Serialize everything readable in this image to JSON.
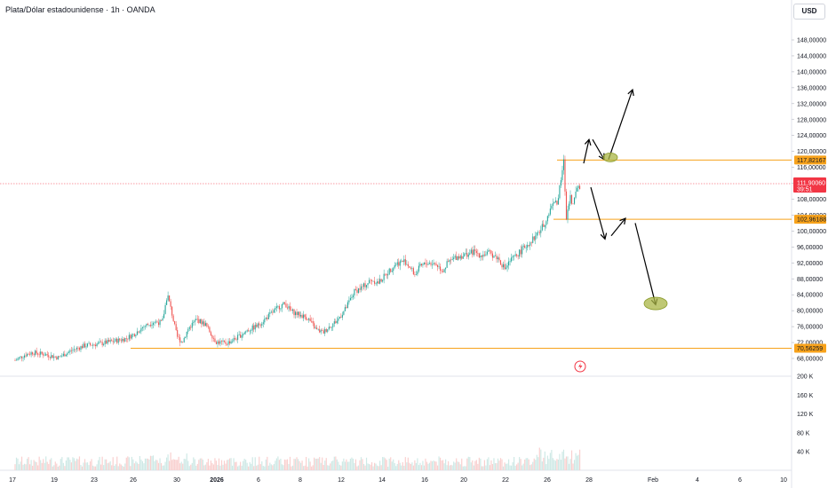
{
  "header": {
    "title": "Plata/Dólar estadounidense · 1h · OANDA",
    "currency_button": "USD"
  },
  "colors": {
    "up": "#26a69a",
    "down": "#ef5350",
    "level_line": "#f7a21b",
    "current_price": "#f23645",
    "ellipse_fill": "#a9b545",
    "arrow": "#000000",
    "vol_up": "#cfe9e6",
    "vol_down": "#f9d0cf"
  },
  "chart_data": {
    "type": "candlestick",
    "price_axis": {
      "ylim": [
        64,
        152
      ],
      "ticks": [
        "148,00000",
        "144,00000",
        "140,00000",
        "136,00000",
        "132,00000",
        "128,00000",
        "124,00000",
        "120,00000",
        "116,00000",
        "112,00000",
        "108,00000",
        "104,00000",
        "100,00000",
        "96,00000",
        "92,00000",
        "88,00000",
        "84,00000",
        "80,00000",
        "76,00000",
        "72,00000",
        "68,00000"
      ],
      "tick_values": [
        148,
        144,
        140,
        136,
        132,
        128,
        124,
        120,
        116,
        112,
        108,
        104,
        100,
        96,
        92,
        88,
        84,
        80,
        76,
        72,
        68
      ]
    },
    "volume_axis": {
      "ylim": [
        0,
        220
      ],
      "ticks": [
        "200 K",
        "160 K",
        "120 K",
        "80 K",
        "40 K"
      ],
      "tick_values": [
        200,
        160,
        120,
        80,
        40
      ]
    },
    "x_axis": {
      "labels": [
        "17",
        "19",
        "23",
        "26",
        "30",
        "2026",
        "6",
        "8",
        "12",
        "14",
        "16",
        "20",
        "22",
        "26",
        "28",
        "Feb",
        "4",
        "6",
        "10"
      ]
    },
    "levels": [
      {
        "label": "117,82167",
        "value": 117.82
      },
      {
        "label": "102,96188",
        "value": 102.96
      },
      {
        "label": "70,56259",
        "value": 70.56
      }
    ],
    "current_price": {
      "label": "111,90060",
      "value": 111.9,
      "countdown": "39:51"
    },
    "price_path": [
      [
        0,
        67.5
      ],
      [
        10,
        68.8
      ],
      [
        20,
        69.5
      ],
      [
        35,
        69.0
      ],
      [
        50,
        68.2
      ],
      [
        65,
        70.0
      ],
      [
        80,
        71.2
      ],
      [
        100,
        71.8
      ],
      [
        118,
        72.5
      ],
      [
        128,
        73.0
      ],
      [
        138,
        74.2
      ],
      [
        148,
        76.0
      ],
      [
        160,
        77.2
      ],
      [
        170,
        77.0
      ],
      [
        176,
        84.2
      ],
      [
        181,
        79.5
      ],
      [
        187,
        73.5
      ],
      [
        193,
        72.0
      ],
      [
        200,
        75.5
      ],
      [
        210,
        77.8
      ],
      [
        220,
        76.5
      ],
      [
        232,
        72.2
      ],
      [
        244,
        71.8
      ],
      [
        255,
        73.0
      ],
      [
        268,
        75.0
      ],
      [
        280,
        76.2
      ],
      [
        292,
        78.5
      ],
      [
        305,
        81.0
      ],
      [
        312,
        81.8
      ],
      [
        318,
        80.0
      ],
      [
        328,
        79.0
      ],
      [
        338,
        78.2
      ],
      [
        348,
        75.2
      ],
      [
        356,
        74.5
      ],
      [
        362,
        75.8
      ],
      [
        372,
        77.5
      ],
      [
        382,
        80.5
      ],
      [
        392,
        84.8
      ],
      [
        402,
        86.0
      ],
      [
        412,
        87.8
      ],
      [
        420,
        87.0
      ],
      [
        430,
        89.5
      ],
      [
        440,
        91.8
      ],
      [
        450,
        92.5
      ],
      [
        456,
        91.0
      ],
      [
        462,
        89.0
      ],
      [
        468,
        91.0
      ],
      [
        476,
        92.0
      ],
      [
        486,
        91.8
      ],
      [
        494,
        90.0
      ],
      [
        500,
        92.0
      ],
      [
        510,
        93.5
      ],
      [
        520,
        94.0
      ],
      [
        530,
        94.8
      ],
      [
        538,
        94.0
      ],
      [
        548,
        94.5
      ],
      [
        558,
        93.2
      ],
      [
        566,
        90.5
      ],
      [
        572,
        92.5
      ],
      [
        580,
        94.0
      ],
      [
        588,
        95.8
      ],
      [
        596,
        97.5
      ],
      [
        604,
        99.2
      ],
      [
        612,
        102.0
      ],
      [
        618,
        105.0
      ],
      [
        622,
        108.0
      ],
      [
        626,
        106.5
      ],
      [
        630,
        111.5
      ],
      [
        634,
        117.5
      ],
      [
        637,
        103.0
      ],
      [
        641,
        109.0
      ],
      [
        645,
        106.5
      ],
      [
        650,
        111.8
      ],
      [
        654,
        110.2
      ]
    ],
    "volume": [
      {
        "from": 0,
        "to": 650
      }
    ],
    "annotations": [
      {
        "type": "arrow",
        "from": [
          657,
          117.0
        ],
        "to": [
          663,
          123.0
        ]
      },
      {
        "type": "arrow",
        "from": [
          667,
          123.0
        ],
        "to": [
          680,
          118.0
        ]
      },
      {
        "type": "arrow",
        "from": [
          685,
          118.0
        ],
        "to": [
          712,
          135.5
        ]
      },
      {
        "type": "arrow",
        "from": [
          665,
          111.0
        ],
        "to": [
          681,
          98.0
        ]
      },
      {
        "type": "arrow",
        "from": [
          688,
          98.8
        ],
        "to": [
          704,
          103.2
        ]
      },
      {
        "type": "arrow",
        "from": [
          715,
          102.0
        ],
        "to": [
          738,
          81.5
        ]
      },
      {
        "type": "ellipse",
        "center": [
          687,
          118.5
        ],
        "rx": 8,
        "ry": 5
      },
      {
        "type": "ellipse",
        "center": [
          738,
          81.8
        ],
        "rx": 13,
        "ry": 7
      }
    ]
  }
}
